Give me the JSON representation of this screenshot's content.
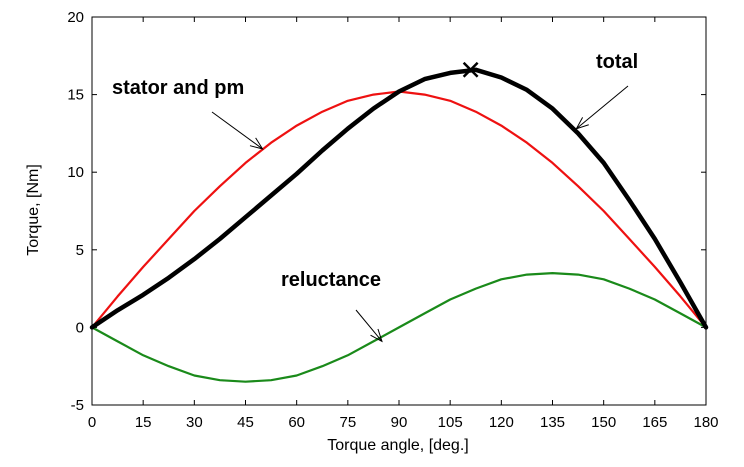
{
  "chart_data": {
    "type": "line",
    "xlabel": "Torque angle, [deg.]",
    "ylabel": "Torque, [Nm]",
    "xlim": [
      0,
      180
    ],
    "ylim": [
      -5,
      20
    ],
    "xticks": [
      0,
      15,
      30,
      45,
      60,
      75,
      90,
      105,
      120,
      135,
      150,
      165,
      180
    ],
    "yticks": [
      -5,
      0,
      5,
      10,
      15,
      20
    ],
    "grid": false,
    "legend": "none",
    "series": [
      {
        "name": "stator and pm",
        "color": "#ee1111",
        "x": [
          0,
          7.5,
          15,
          22.5,
          30,
          37.5,
          45,
          52.5,
          60,
          67.5,
          75,
          82.5,
          90,
          97.5,
          105,
          112.5,
          120,
          127.5,
          135,
          142.5,
          150,
          157.5,
          165,
          172.5,
          180
        ],
        "values": [
          0,
          2.0,
          3.9,
          5.7,
          7.5,
          9.1,
          10.6,
          11.9,
          13.0,
          13.9,
          14.6,
          15.0,
          15.2,
          15.0,
          14.6,
          13.9,
          13.0,
          11.9,
          10.6,
          9.1,
          7.5,
          5.7,
          3.9,
          2.0,
          0
        ]
      },
      {
        "name": "reluctance",
        "color": "#1a8a1a",
        "x": [
          0,
          7.5,
          15,
          22.5,
          30,
          37.5,
          45,
          52.5,
          60,
          67.5,
          75,
          82.5,
          90,
          97.5,
          105,
          112.5,
          120,
          127.5,
          135,
          142.5,
          150,
          157.5,
          165,
          172.5,
          180
        ],
        "values": [
          0,
          -0.9,
          -1.8,
          -2.5,
          -3.1,
          -3.4,
          -3.5,
          -3.4,
          -3.1,
          -2.5,
          -1.8,
          -0.9,
          0,
          0.9,
          1.8,
          2.5,
          3.1,
          3.4,
          3.5,
          3.4,
          3.1,
          2.5,
          1.8,
          0.9,
          0
        ]
      },
      {
        "name": "total",
        "color": "#000000",
        "x": [
          0,
          7.5,
          15,
          22.5,
          30,
          37.5,
          45,
          52.5,
          60,
          67.5,
          75,
          82.5,
          90,
          97.5,
          105,
          112.5,
          120,
          127.5,
          135,
          142.5,
          150,
          157.5,
          165,
          172.5,
          180
        ],
        "values": [
          0,
          1.1,
          2.1,
          3.2,
          4.4,
          5.7,
          7.1,
          8.5,
          9.9,
          11.4,
          12.8,
          14.1,
          15.2,
          16.0,
          16.4,
          16.6,
          16.1,
          15.3,
          14.1,
          12.5,
          10.6,
          8.2,
          5.7,
          2.9,
          0
        ]
      }
    ],
    "annotations": [
      {
        "text": "stator and pm",
        "series": "stator and pm",
        "arrow_to": [
          50,
          11.5
        ]
      },
      {
        "text": "total",
        "series": "total",
        "arrow_to": [
          142,
          12.8
        ]
      },
      {
        "text": "reluctance",
        "series": "reluctance",
        "arrow_to": [
          85,
          -0.9
        ]
      }
    ],
    "marker": {
      "symbol": "×",
      "x": 111,
      "y": 16.6
    }
  }
}
